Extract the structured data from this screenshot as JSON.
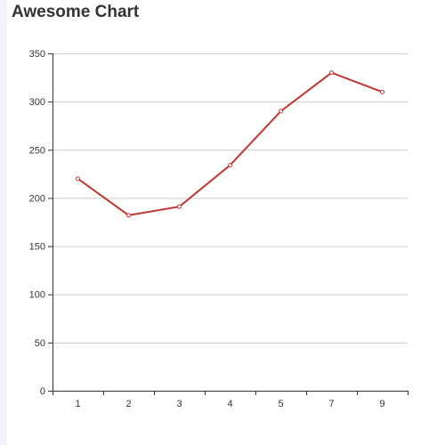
{
  "chart_data": {
    "type": "line",
    "title": "Awesome Chart",
    "xlabel": "",
    "ylabel": "",
    "categories": [
      "1",
      "2",
      "3",
      "4",
      "5",
      "7",
      "9"
    ],
    "values": [
      220,
      182,
      191,
      234,
      290,
      330,
      310
    ],
    "ylim": [
      0,
      350
    ],
    "yticks": [
      0,
      50,
      100,
      150,
      200,
      250,
      300,
      350
    ],
    "grid": true,
    "legend": "none",
    "series_color": "#c23531",
    "grid_color": "#cccccc",
    "axis_color": "#333333"
  }
}
